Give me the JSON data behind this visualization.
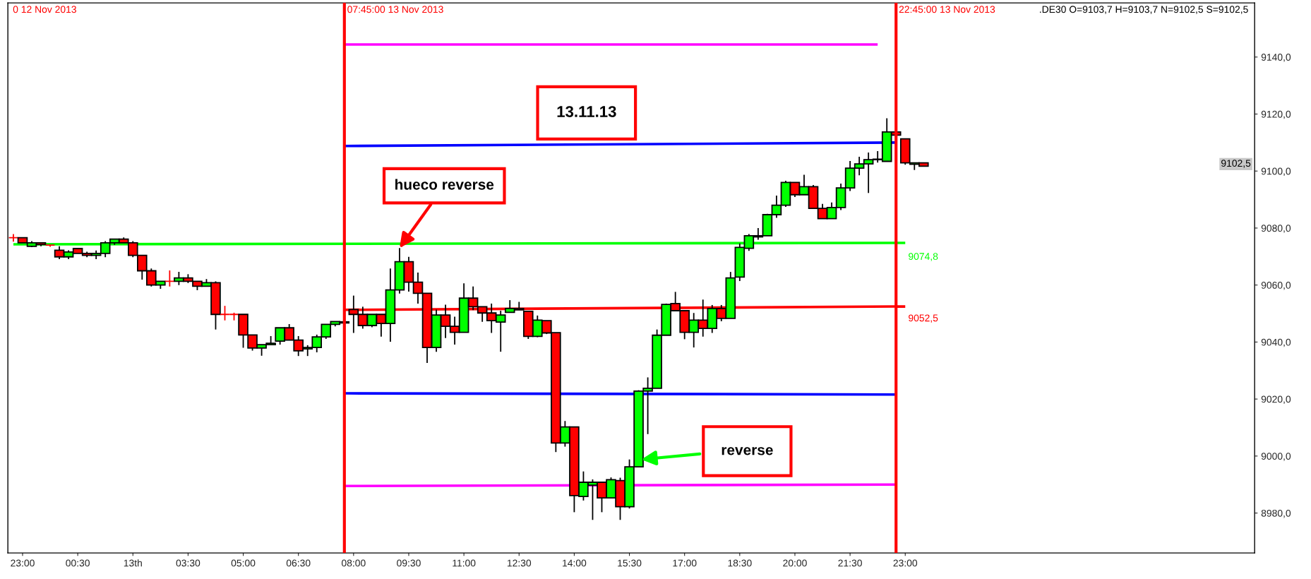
{
  "chart_data": {
    "type": "candlestick",
    "x": [
      "2013-11-12T22:45",
      "2013-11-12T23:00",
      "2013-11-12T23:15",
      "2013-11-12T23:30",
      "2013-11-12T23:45",
      "2013-11-13T00:00",
      "2013-11-13T00:15",
      "2013-11-13T00:30",
      "2013-11-13T00:45",
      "2013-11-13T01:00",
      "2013-11-13T01:15",
      "2013-11-13T01:30",
      "2013-11-13T01:45",
      "2013-11-13T02:00",
      "2013-11-13T02:15",
      "2013-11-13T02:30",
      "2013-11-13T02:45",
      "2013-11-13T03:00",
      "2013-11-13T03:15",
      "2013-11-13T03:30",
      "2013-11-13T03:45",
      "2013-11-13T04:00",
      "2013-11-13T04:15",
      "2013-11-13T04:30",
      "2013-11-13T04:45",
      "2013-11-13T05:00",
      "2013-11-13T05:15",
      "2013-11-13T05:30",
      "2013-11-13T05:45",
      "2013-11-13T06:00",
      "2013-11-13T06:15",
      "2013-11-13T06:30",
      "2013-11-13T06:45",
      "2013-11-13T07:00",
      "2013-11-13T07:15",
      "2013-11-13T07:30",
      "2013-11-13T07:45",
      "2013-11-13T08:00",
      "2013-11-13T08:15",
      "2013-11-13T08:30",
      "2013-11-13T08:45",
      "2013-11-13T09:00",
      "2013-11-13T09:15",
      "2013-11-13T09:30",
      "2013-11-13T09:45",
      "2013-11-13T10:00",
      "2013-11-13T10:15",
      "2013-11-13T10:30",
      "2013-11-13T10:45",
      "2013-11-13T11:00",
      "2013-11-13T11:15",
      "2013-11-13T11:30",
      "2013-11-13T11:45",
      "2013-11-13T12:00",
      "2013-11-13T12:15",
      "2013-11-13T12:30",
      "2013-11-13T12:45",
      "2013-11-13T13:00",
      "2013-11-13T13:15",
      "2013-11-13T13:30",
      "2013-11-13T13:45",
      "2013-11-13T14:00",
      "2013-11-13T14:15",
      "2013-11-13T14:30",
      "2013-11-13T14:45",
      "2013-11-13T15:00",
      "2013-11-13T15:15",
      "2013-11-13T15:30",
      "2013-11-13T15:45",
      "2013-11-13T16:00",
      "2013-11-13T16:15",
      "2013-11-13T16:30",
      "2013-11-13T16:45",
      "2013-11-13T17:00",
      "2013-11-13T17:15",
      "2013-11-13T17:30",
      "2013-11-13T17:45",
      "2013-11-13T18:00",
      "2013-11-13T18:15",
      "2013-11-13T18:30",
      "2013-11-13T18:45",
      "2013-11-13T19:00",
      "2013-11-13T19:15",
      "2013-11-13T19:30",
      "2013-11-13T19:45",
      "2013-11-13T20:00",
      "2013-11-13T20:15",
      "2013-11-13T20:30",
      "2013-11-13T20:45",
      "2013-11-13T21:00",
      "2013-11-13T21:15",
      "2013-11-13T21:30",
      "2013-11-13T21:45",
      "2013-11-13T22:00",
      "2013-11-13T22:15",
      "2013-11-13T22:30",
      "2013-11-13T22:45",
      "2013-11-13T23:00",
      "2013-11-13T23:15",
      "2013-11-13T23:30"
    ],
    "ohlc": [
      [
        9076.6,
        9077.9,
        9075.2,
        9076.6
      ],
      [
        9076.6,
        9076.6,
        9074.8,
        9074.8
      ],
      [
        9073.6,
        9075.4,
        9073.3,
        9074.8
      ],
      [
        9074.8,
        9074.8,
        9073.6,
        9074.2
      ],
      [
        9074.0,
        9074.0,
        9073.4,
        9074.0
      ],
      [
        9072.2,
        9073.6,
        9069.1,
        9069.9
      ],
      [
        9069.9,
        9072.2,
        9069.1,
        9071.6
      ],
      [
        9072.8,
        9072.8,
        9071.1,
        9071.1
      ],
      [
        9071.1,
        9071.7,
        9069.8,
        9070.4
      ],
      [
        9070.4,
        9072.1,
        9069.1,
        9071.1
      ],
      [
        9071.1,
        9075.4,
        9069.8,
        9074.8
      ],
      [
        9074.8,
        9076.1,
        9074.1,
        9076.1
      ],
      [
        9076.1,
        9076.7,
        9074.8,
        9074.8
      ],
      [
        9074.8,
        9075.4,
        9069.8,
        9070.4
      ],
      [
        9070.4,
        9070.4,
        9061.9,
        9065.0
      ],
      [
        9065.0,
        9065.8,
        9059.5,
        9060.0
      ],
      [
        9060.0,
        9061.3,
        9058.7,
        9061.3
      ],
      [
        9061.3,
        9065.1,
        9059.5,
        9061.3
      ],
      [
        9061.3,
        9064.6,
        9060.0,
        9062.5
      ],
      [
        9062.5,
        9063.8,
        9060.7,
        9061.3
      ],
      [
        9061.3,
        9061.3,
        9058.2,
        9059.6
      ],
      [
        9059.6,
        9062.1,
        9059.6,
        9060.8
      ],
      [
        9060.8,
        9061.3,
        9044.4,
        9049.7
      ],
      [
        9049.7,
        9052.7,
        9047.6,
        9049.7
      ],
      [
        9049.7,
        9050.3,
        9047.6,
        9049.7
      ],
      [
        9049.7,
        9049.7,
        9038.0,
        9042.5
      ],
      [
        9042.5,
        9042.5,
        9037.0,
        9037.9
      ],
      [
        9037.9,
        9039.1,
        9035.2,
        9039.1
      ],
      [
        9039.1,
        9042.1,
        9039.1,
        9039.6
      ],
      [
        9040.3,
        9045.0,
        9039.1,
        9045.0
      ],
      [
        9045.0,
        9046.3,
        9040.7,
        9040.7
      ],
      [
        9040.7,
        9042.1,
        9035.1,
        9036.9
      ],
      [
        9037.6,
        9038.9,
        9035.1,
        9038.1
      ],
      [
        9038.1,
        9042.6,
        9036.4,
        9041.8
      ],
      [
        9041.8,
        9046.2,
        9041.1,
        9046.2
      ],
      [
        9046.2,
        9047.2,
        9045.5,
        9047.2
      ],
      [
        9046.7,
        9047.6,
        9046.4,
        9047.1
      ],
      [
        9051.4,
        9056.3,
        9043.2,
        9049.7
      ],
      [
        9049.7,
        9052.4,
        9044.7,
        9045.8
      ],
      [
        9045.8,
        9049.7,
        9045.2,
        9049.7
      ],
      [
        9049.7,
        9049.7,
        9041.9,
        9046.5
      ],
      [
        9046.5,
        9065.8,
        9040.1,
        9058.3
      ],
      [
        9058.3,
        9073.0,
        9057.0,
        9068.2
      ],
      [
        9068.2,
        9069.9,
        9057.7,
        9061.0
      ],
      [
        9061.0,
        9064.4,
        9053.5,
        9057.1
      ],
      [
        9057.1,
        9057.1,
        9032.7,
        9038.1
      ],
      [
        9038.1,
        9051.4,
        9036.6,
        9049.5
      ],
      [
        9049.5,
        9053.1,
        9041.4,
        9045.5
      ],
      [
        9045.5,
        9048.9,
        9039.1,
        9043.4
      ],
      [
        9043.4,
        9060.6,
        9043.4,
        9055.4
      ],
      [
        9055.4,
        9059.5,
        9051.2,
        9052.4
      ],
      [
        9052.4,
        9052.4,
        9047.1,
        9050.2
      ],
      [
        9050.2,
        9053.5,
        9043.2,
        9047.5
      ],
      [
        9047.0,
        9051.0,
        9036.6,
        9049.5
      ],
      [
        9050.4,
        9054.7,
        9050.4,
        9051.8
      ],
      [
        9051.8,
        9054.1,
        9051.3,
        9051.3
      ],
      [
        9050.8,
        9050.8,
        9041.1,
        9042.0
      ],
      [
        9042.0,
        9049.3,
        9041.7,
        9047.7
      ],
      [
        9047.5,
        9047.5,
        9042.8,
        9043.2
      ],
      [
        9043.3,
        9043.3,
        9001.4,
        9004.6
      ],
      [
        9004.6,
        9012.3,
        9003.3,
        9010.2
      ],
      [
        9010.2,
        9010.2,
        8980.3,
        8986.1
      ],
      [
        8985.8,
        8994.6,
        8984.4,
        8990.8
      ],
      [
        8989.8,
        8991.8,
        8977.6,
        8990.8
      ],
      [
        8990.8,
        8990.8,
        8980.3,
        8985.3
      ],
      [
        8985.3,
        8992.5,
        8985.3,
        8991.7
      ],
      [
        8991.4,
        8992.4,
        8977.6,
        8982.2
      ],
      [
        8982.2,
        8998.8,
        8981.6,
        8996.2
      ],
      [
        8996.2,
        9023.1,
        8996.2,
        9022.8
      ],
      [
        9022.8,
        9027.6,
        9007.7,
        9023.8
      ],
      [
        9023.8,
        9044.4,
        9023.8,
        9042.4
      ],
      [
        9042.4,
        9053.5,
        9042.4,
        9053.2
      ],
      [
        9053.5,
        9057.6,
        9051.0,
        9051.0
      ],
      [
        9051.0,
        9051.0,
        9041.0,
        9043.4
      ],
      [
        9043.4,
        9050.2,
        9038.1,
        9047.7
      ],
      [
        9047.7,
        9054.9,
        9041.9,
        9044.8
      ],
      [
        9044.8,
        9053.0,
        9043.2,
        9051.8
      ],
      [
        9051.8,
        9053.0,
        9047.3,
        9048.3
      ],
      [
        9048.3,
        9064.6,
        9048.3,
        9062.5
      ],
      [
        9062.8,
        9074.6,
        9061.4,
        9073.2
      ],
      [
        9072.9,
        9077.9,
        9072.0,
        9077.3
      ],
      [
        9077.3,
        9080.0,
        9075.9,
        9076.9
      ],
      [
        9077.3,
        9085.0,
        9077.3,
        9084.7
      ],
      [
        9084.7,
        9091.4,
        9083.6,
        9088.0
      ],
      [
        9088.0,
        9096.6,
        9087.4,
        9096.0
      ],
      [
        9096.0,
        9096.0,
        9090.9,
        9091.7
      ],
      [
        9091.7,
        9098.7,
        9091.7,
        9094.5
      ],
      [
        9094.5,
        9095.1,
        9086.9,
        9086.9
      ],
      [
        9086.9,
        9088.5,
        9083.3,
        9083.3
      ],
      [
        9083.3,
        9089.0,
        9083.3,
        9087.2
      ],
      [
        9087.2,
        9095.6,
        9086.3,
        9094.1
      ],
      [
        9094.1,
        9103.5,
        9093.0,
        9101.0
      ],
      [
        9101.0,
        9105.0,
        9098.5,
        9102.5
      ],
      [
        9102.5,
        9106.5,
        9092.3,
        9104.0
      ],
      [
        9104.0,
        9107.0,
        9103.0,
        9104.2
      ],
      [
        9103.4,
        9118.5,
        9103.4,
        9113.7
      ],
      [
        9113.7,
        9114.0,
        9112.6,
        9112.6
      ],
      [
        9111.3,
        9111.3,
        9102.2,
        9102.9
      ],
      [
        9102.4,
        9102.9,
        9100.4,
        9102.9
      ],
      [
        9102.9,
        9102.9,
        9101.7,
        9101.7
      ]
    ],
    "colors": [
      "#ff0000",
      "#ff0000",
      "#00ff00",
      "#ff0000",
      "#ff0000",
      "#ff0000",
      "#00ff00",
      "#ff0000",
      "#ff0000",
      "#00ff00",
      "#00ff00",
      "#00ff00",
      "#ff0000",
      "#ff0000",
      "#ff0000",
      "#ff0000",
      "#00ff00",
      "#ff0000",
      "#00ff00",
      "#ff0000",
      "#ff0000",
      "#00ff00",
      "#ff0000",
      "#ff0000",
      "#ff0000",
      "#ff0000",
      "#ff0000",
      "#00ff00",
      "#00ff00",
      "#00ff00",
      "#ff0000",
      "#ff0000",
      "#00ff00",
      "#00ff00",
      "#00ff00",
      "#00ff00",
      "#00ff00",
      "#ff0000",
      "#ff0000",
      "#00ff00",
      "#ff0000",
      "#00ff00",
      "#00ff00",
      "#ff0000",
      "#ff0000",
      "#ff0000",
      "#00ff00",
      "#ff0000",
      "#ff0000",
      "#00ff00",
      "#ff0000",
      "#ff0000",
      "#ff0000",
      "#00ff00",
      "#00ff00",
      "#ff0000",
      "#ff0000",
      "#00ff00",
      "#ff0000",
      "#ff0000",
      "#00ff00",
      "#ff0000",
      "#00ff00",
      "#00ff00",
      "#ff0000",
      "#00ff00",
      "#ff0000",
      "#00ff00",
      "#00ff00",
      "#00ff00",
      "#00ff00",
      "#00ff00",
      "#ff0000",
      "#ff0000",
      "#00ff00",
      "#ff0000",
      "#00ff00",
      "#ff0000",
      "#00ff00",
      "#00ff00",
      "#00ff00",
      "#ff0000",
      "#00ff00",
      "#00ff00",
      "#00ff00",
      "#ff0000",
      "#00ff00",
      "#ff0000",
      "#ff0000",
      "#00ff00",
      "#00ff00",
      "#00ff00",
      "#00ff00",
      "#00ff00",
      "#00ff00",
      "#00ff00",
      "#ff0000",
      "#ff0000",
      "#00ff00",
      "#ff0000"
    ],
    "series": [
      {
        "type": "line",
        "x": [
          "2013-11-13T07:45",
          "2013-11-13T22:15"
        ],
        "values": [
          9144.4,
          9144.4
        ],
        "color": "#ff00ff"
      },
      {
        "type": "line",
        "x": [
          "2013-11-13T07:45",
          "2013-11-13T22:45"
        ],
        "values": [
          9108.8,
          9110.0
        ],
        "color": "#0000ff"
      },
      {
        "type": "line",
        "x": [
          "2013-11-12T22:45",
          "2013-11-13T23:00"
        ],
        "values": [
          9074.3,
          9074.8
        ],
        "color": "#00ff00"
      },
      {
        "type": "line",
        "x": [
          "2013-11-13T07:45",
          "2013-11-13T23:00"
        ],
        "values": [
          9051.3,
          9052.5
        ],
        "color": "#ff0000"
      },
      {
        "type": "line",
        "x": [
          "2013-11-13T07:45",
          "2013-11-13T22:45"
        ],
        "values": [
          9022.0,
          9021.6
        ],
        "color": "#0000ff"
      },
      {
        "type": "line",
        "x": [
          "2013-11-13T07:45",
          "2013-11-13T22:45"
        ],
        "values": [
          8989.5,
          8990.0
        ],
        "color": "#ff00ff"
      }
    ],
    "ref_lines": [
      {
        "axis": "x",
        "value": "2013-11-13T07:45",
        "label": "07:45:00 13 Nov 2013",
        "color": "#ff0000"
      },
      {
        "axis": "x",
        "value": "2013-11-13T22:45",
        "label": "22:45:00 13 Nov 2013",
        "color": "#ff0000"
      }
    ],
    "annotations": [
      "0 12 Nov 2013",
      ".DE30 O=9103,7 H=9103,7 N=9102,5 S=9102,5",
      "13.11.13",
      "9102,5",
      "reverse",
      {
        "text": "hueco reverse",
        "x": "2013-11-13T09:15",
        "y": 9073.0
      },
      {
        "text": "9074,8",
        "x": "2013-11-13T23:00",
        "y": 9074.8
      },
      {
        "text": "9052,5",
        "x": "2013-11-13T23:00",
        "y": 9052.5
      }
    ],
    "xlim": [
      "2013-11-12T22:36",
      "2013-11-14T08:30"
    ],
    "ylim": [
      8966,
      9159
    ],
    "xticks": [
      {
        "value": "2013-11-12T23:00",
        "label": "23:00"
      },
      {
        "value": "2013-11-13T00:30",
        "label": "00:30"
      },
      {
        "value": "2013-11-13T02:00",
        "label": "13th"
      },
      {
        "value": "2013-11-13T03:30",
        "label": "03:30"
      },
      {
        "value": "2013-11-13T05:00",
        "label": "05:00"
      },
      {
        "value": "2013-11-13T06:30",
        "label": "06:30"
      },
      {
        "value": "2013-11-13T08:00",
        "label": "08:00"
      },
      {
        "value": "2013-11-13T09:30",
        "label": "09:30"
      },
      {
        "value": "2013-11-13T11:00",
        "label": "11:00"
      },
      {
        "value": "2013-11-13T12:30",
        "label": "12:30"
      },
      {
        "value": "2013-11-13T14:00",
        "label": "14:00"
      },
      {
        "value": "2013-11-13T15:30",
        "label": "15:30"
      },
      {
        "value": "2013-11-13T17:00",
        "label": "17:00"
      },
      {
        "value": "2013-11-13T18:30",
        "label": "18:30"
      },
      {
        "value": "2013-11-13T20:00",
        "label": "20:00"
      },
      {
        "value": "2013-11-13T21:30",
        "label": "21:30"
      },
      {
        "value": "2013-11-13T23:00",
        "label": "23:00"
      }
    ],
    "yticks": [
      {
        "value": 8980,
        "label": "8980,0"
      },
      {
        "value": 9000,
        "label": "9000,0"
      },
      {
        "value": 9020,
        "label": "9020,0"
      },
      {
        "value": 9040,
        "label": "9040,0"
      },
      {
        "value": 9060,
        "label": "9060,0"
      },
      {
        "value": 9080,
        "label": "9080,0"
      },
      {
        "value": 9100,
        "label": "9100,0"
      },
      {
        "value": 9120,
        "label": "9120,0"
      },
      {
        "value": 9140,
        "label": "9140,0"
      }
    ],
    "grid": false,
    "legend": false
  }
}
